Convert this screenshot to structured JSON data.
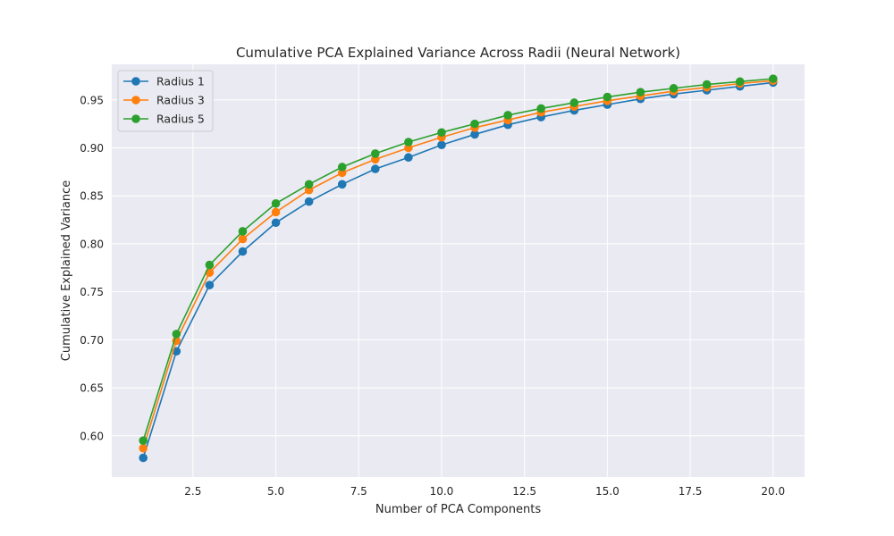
{
  "chart_data": {
    "type": "line",
    "title": "Cumulative PCA Explained Variance Across Radii (Neural Network)",
    "xlabel": "Number of PCA Components",
    "ylabel": "Cumulative Explained Variance",
    "xlim": [
      0.05,
      20.95
    ],
    "ylim": [
      0.557,
      0.987
    ],
    "xticks": [
      2.5,
      5.0,
      7.5,
      10.0,
      12.5,
      15.0,
      17.5,
      20.0
    ],
    "xtick_labels": [
      "2.5",
      "5.0",
      "7.5",
      "10.0",
      "12.5",
      "15.0",
      "17.5",
      "20.0"
    ],
    "yticks": [
      0.6,
      0.65,
      0.7,
      0.75,
      0.8,
      0.85,
      0.9,
      0.95
    ],
    "ytick_labels": [
      "0.60",
      "0.65",
      "0.70",
      "0.75",
      "0.80",
      "0.85",
      "0.90",
      "0.95"
    ],
    "grid": true,
    "legend": "top-left",
    "x": [
      1,
      2,
      3,
      4,
      5,
      6,
      7,
      8,
      9,
      10,
      11,
      12,
      13,
      14,
      15,
      16,
      17,
      18,
      19,
      20
    ],
    "series": [
      {
        "name": "Radius 1",
        "color": "#1f77b4",
        "values": [
          0.577,
          0.688,
          0.757,
          0.792,
          0.822,
          0.844,
          0.862,
          0.878,
          0.89,
          0.903,
          0.914,
          0.924,
          0.932,
          0.939,
          0.945,
          0.951,
          0.956,
          0.96,
          0.964,
          0.968
        ]
      },
      {
        "name": "Radius 3",
        "color": "#ff7f0e",
        "values": [
          0.587,
          0.699,
          0.77,
          0.805,
          0.833,
          0.856,
          0.874,
          0.888,
          0.9,
          0.911,
          0.921,
          0.929,
          0.937,
          0.943,
          0.949,
          0.954,
          0.959,
          0.963,
          0.967,
          0.97
        ]
      },
      {
        "name": "Radius 5",
        "color": "#2ca02c",
        "values": [
          0.595,
          0.706,
          0.778,
          0.813,
          0.842,
          0.862,
          0.88,
          0.894,
          0.906,
          0.916,
          0.925,
          0.934,
          0.941,
          0.947,
          0.953,
          0.958,
          0.962,
          0.966,
          0.969,
          0.972
        ]
      }
    ]
  }
}
